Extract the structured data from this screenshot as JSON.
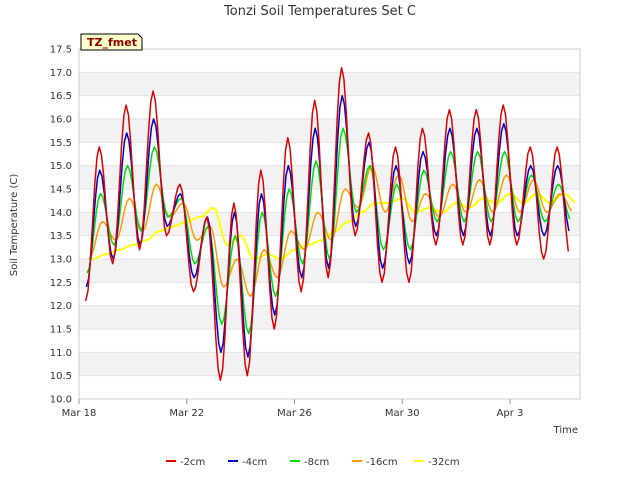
{
  "chart_data": {
    "type": "line",
    "title": "Tonzi Soil Temperatures Set C",
    "xlabel": "Time",
    "ylabel": "Soil Temperature (C)",
    "badge": "TZ_fmet",
    "ylim": [
      10.0,
      17.5
    ],
    "xlim": [
      0,
      18.6
    ],
    "x_unit": "days since Mar 18",
    "yticks": [
      "10.0",
      "10.5",
      "11.0",
      "11.5",
      "12.0",
      "12.5",
      "13.0",
      "13.5",
      "14.0",
      "14.5",
      "15.0",
      "15.5",
      "16.0",
      "16.5",
      "17.0",
      "17.5"
    ],
    "xticks": [
      {
        "pos": 0,
        "label": "Mar 18"
      },
      {
        "pos": 4,
        "label": "Mar 22"
      },
      {
        "pos": 8,
        "label": "Mar 26"
      },
      {
        "pos": 12,
        "label": "Mar 30"
      },
      {
        "pos": 16,
        "label": "Apr 3"
      }
    ],
    "grid": true,
    "legend_position": "bottom",
    "series": [
      {
        "name": "-2cm",
        "color": "#dd0000",
        "min": [
          12.1,
          12.9,
          13.2,
          13.5,
          12.3,
          10.4,
          10.5,
          11.5,
          12.3,
          12.6,
          13.5,
          12.5,
          12.5,
          13.3,
          13.3,
          13.3,
          13.3,
          13.0
        ],
        "max": [
          15.4,
          16.3,
          16.6,
          14.6,
          13.9,
          14.2,
          14.9,
          15.6,
          16.4,
          17.1,
          15.7,
          15.4,
          15.8,
          16.2,
          16.2,
          16.3,
          15.4,
          15.4
        ]
      },
      {
        "name": "-4cm",
        "color": "#0000cc",
        "min": [
          12.4,
          13.0,
          13.3,
          13.7,
          12.6,
          11.0,
          10.9,
          11.8,
          12.6,
          12.8,
          13.7,
          12.8,
          12.9,
          13.5,
          13.5,
          13.5,
          13.5,
          13.5
        ],
        "max": [
          14.9,
          15.7,
          16.0,
          14.4,
          13.9,
          14.0,
          14.4,
          15.0,
          15.8,
          16.5,
          15.5,
          15.0,
          15.3,
          15.8,
          15.8,
          15.9,
          15.0,
          15.0
        ]
      },
      {
        "name": "-8cm",
        "color": "#00dd00",
        "min": [
          12.7,
          13.3,
          13.6,
          13.9,
          12.9,
          11.6,
          11.4,
          12.2,
          12.9,
          13.0,
          14.0,
          13.2,
          13.2,
          13.8,
          13.8,
          13.8,
          13.8,
          13.8
        ],
        "max": [
          14.4,
          15.0,
          15.4,
          14.3,
          13.7,
          13.5,
          14.0,
          14.5,
          15.1,
          15.8,
          15.0,
          14.6,
          14.9,
          15.3,
          15.3,
          15.3,
          14.8,
          14.6
        ]
      },
      {
        "name": "-16cm",
        "color": "#ff9900",
        "min": [
          13.0,
          13.4,
          13.6,
          13.9,
          13.4,
          12.4,
          12.2,
          12.6,
          13.2,
          13.4,
          14.1,
          14.0,
          13.8,
          13.9,
          14.0,
          14.0,
          14.0,
          14.0
        ],
        "max": [
          13.8,
          14.3,
          14.6,
          14.2,
          13.7,
          13.0,
          13.2,
          13.6,
          14.0,
          14.5,
          15.0,
          14.8,
          14.4,
          14.6,
          14.7,
          14.8,
          14.7,
          14.4
        ]
      },
      {
        "name": "-32cm",
        "color": "#ffff00",
        "min": [
          13.0,
          13.2,
          13.4,
          13.7,
          13.9,
          13.3,
          13.0,
          13.0,
          13.3,
          13.6,
          14.0,
          14.2,
          14.0,
          14.0,
          14.1,
          14.2,
          14.2,
          14.2
        ],
        "max": [
          13.1,
          13.3,
          13.6,
          13.8,
          14.1,
          13.5,
          13.1,
          13.2,
          13.4,
          13.8,
          14.2,
          14.3,
          14.1,
          14.2,
          14.3,
          14.4,
          14.4,
          14.4
        ]
      }
    ]
  }
}
